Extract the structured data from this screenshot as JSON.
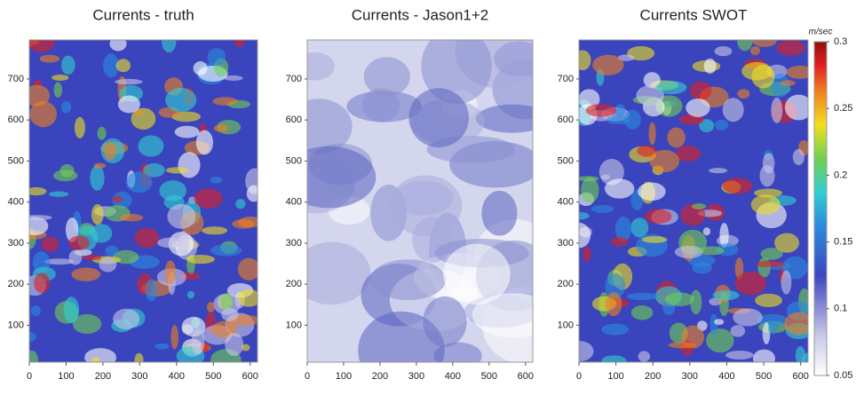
{
  "chart_data": [
    {
      "type": "heatmap",
      "title": "Currents - truth",
      "xlim": [
        0,
        620
      ],
      "xticks": [
        0,
        100,
        200,
        300,
        400,
        500,
        600
      ],
      "ylim": [
        10,
        795
      ],
      "yticks": [
        100,
        200,
        300,
        400,
        500,
        600,
        700
      ]
    },
    {
      "type": "heatmap",
      "title": "Currents - Jason1+2",
      "xlim": [
        0,
        620
      ],
      "xticks": [
        0,
        100,
        200,
        300,
        400,
        500,
        600
      ],
      "ylim": [
        10,
        795
      ],
      "yticks": [
        100,
        200,
        300,
        400,
        500,
        600,
        700
      ]
    },
    {
      "type": "heatmap",
      "title": "Currents SWOT",
      "xlim": [
        0,
        620
      ],
      "xticks": [
        0,
        100,
        200,
        300,
        400,
        500,
        600
      ],
      "ylim": [
        10,
        795
      ],
      "yticks": [
        100,
        200,
        300,
        400,
        500,
        600,
        700
      ]
    }
  ],
  "colorbar": {
    "label": "m/sec",
    "lim": [
      0.05,
      0.3
    ],
    "ticks": [
      0.05,
      0.1,
      0.15,
      0.2,
      0.25,
      0.3
    ]
  }
}
